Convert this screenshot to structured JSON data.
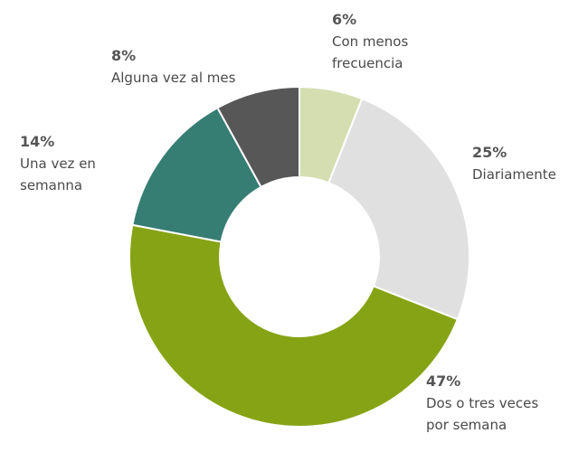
{
  "chart_data": {
    "type": "donut",
    "categories": [
      "Con menos frecuencia",
      "Diariamente",
      "Dos o tres veces por semana",
      "Una vez en semanna",
      "Alguna vez al mes"
    ],
    "values": [
      6,
      25,
      47,
      14,
      8
    ],
    "value_labels": [
      "6%",
      "25%",
      "47%",
      "14%",
      "8%"
    ],
    "colors": [
      "#d4deb0",
      "#e0e0e0",
      "#86a315",
      "#367d74",
      "#575757"
    ]
  }
}
